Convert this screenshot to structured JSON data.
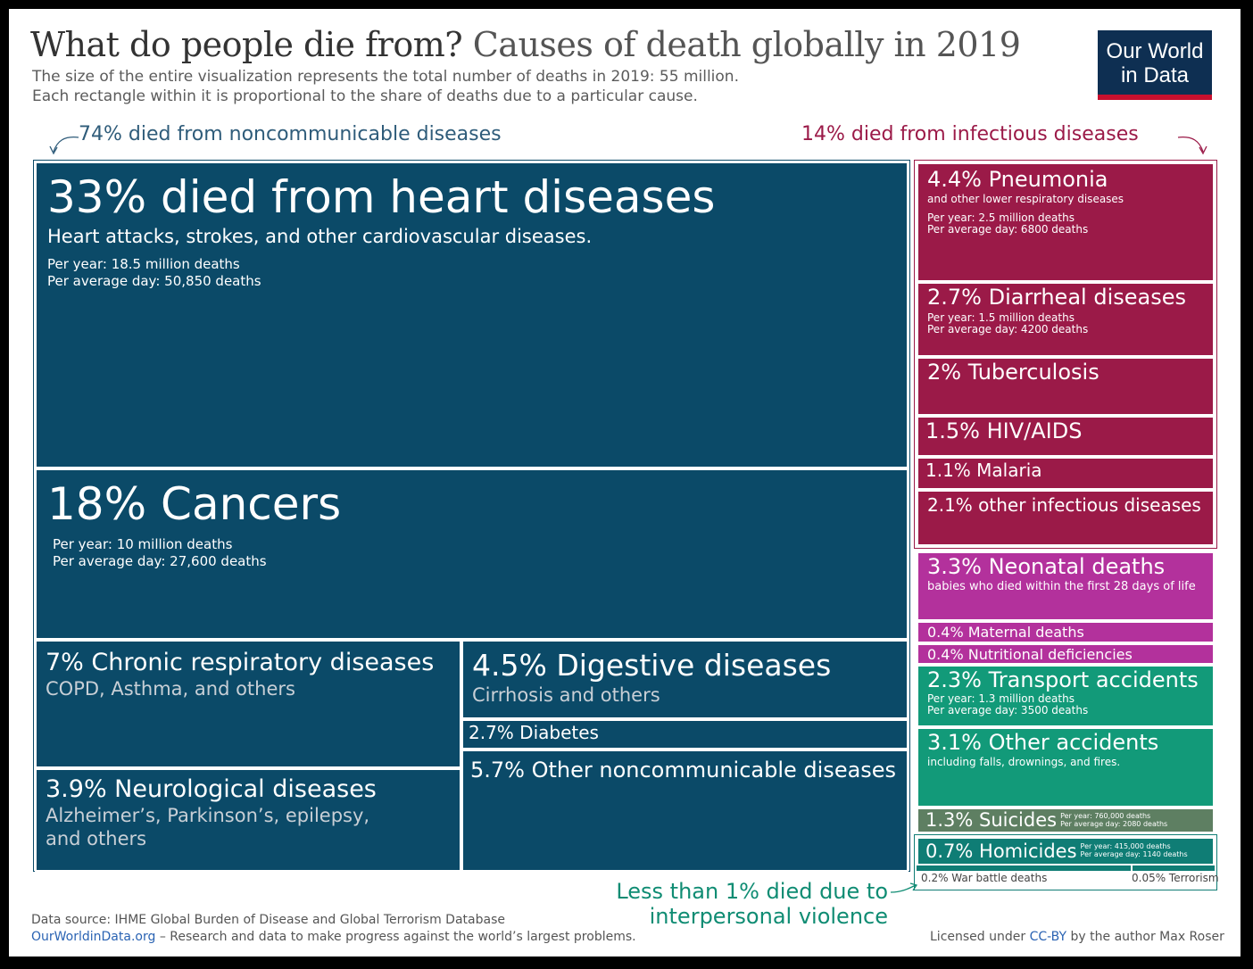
{
  "title": {
    "main": "What do people die from?",
    "sub": "Causes of death globally in 2019"
  },
  "subtitle": [
    "The size of the entire visualization represents the total number of deaths in 2019: 55 million.",
    "Each rectangle within it is proportional to the share of deaths due to a particular cause."
  ],
  "logo": {
    "line1": "Our World",
    "line2": "in Data"
  },
  "groups": {
    "ncd": "74% died from noncommunicable diseases",
    "infectious": "14% died from infectious diseases",
    "violence_line1": "Less than 1% died due to",
    "violence_line2": "interpersonal violence"
  },
  "colors": {
    "noncommunicable": "#0b4a68",
    "infectious": "#9b1a48",
    "maternal_neonatal": "#b3319c",
    "accidents": "#129a79",
    "suicides": "#5e7f62",
    "violence": "#0f7d75",
    "ncd_label": "#2f5c7a",
    "infectious_label": "#9b1a48",
    "violence_label": "#0f8c73"
  },
  "tiles": {
    "heart": {
      "title": "33% died from heart diseases",
      "desc": "Heart attacks, strokes, and other cardiovascular diseases.",
      "stat1": "Per year: 18.5 million deaths",
      "stat2": "Per average day: 50,850 deaths"
    },
    "cancer": {
      "title": "18% Cancers",
      "stat1": "Per year: 10 million deaths",
      "stat2": "Per average day: 27,600 deaths"
    },
    "respiratory": {
      "title": "7% Chronic respiratory diseases",
      "desc": "COPD, Asthma, and others"
    },
    "neuro": {
      "title": "3.9% Neurological diseases",
      "desc1": "Alzheimer’s, Parkinson’s, epilepsy,",
      "desc2": "and others"
    },
    "digestive": {
      "title": "4.5% Digestive diseases",
      "desc": "Cirrhosis and others"
    },
    "diabetes": {
      "title": "2.7% Diabetes"
    },
    "other_ncd": {
      "title": "5.7% Other noncommunicable diseases"
    },
    "pneumonia": {
      "title": "4.4% Pneumonia",
      "desc": "and other lower respiratory diseases",
      "stat1": "Per year: 2.5 million deaths",
      "stat2": "Per average day: 6800 deaths"
    },
    "diarrheal": {
      "title": "2.7% Diarrheal diseases",
      "stat1": "Per year: 1.5 million deaths",
      "stat2": "Per average day: 4200 deaths"
    },
    "tb": {
      "title": "2% Tuberculosis"
    },
    "hiv": {
      "title": "1.5% HIV/AIDS"
    },
    "malaria": {
      "title": "1.1% Malaria"
    },
    "other_inf": {
      "title": "2.1% other infectious diseases"
    },
    "neonatal": {
      "title": "3.3% Neonatal deaths",
      "desc": "babies who died within the first 28 days of life"
    },
    "maternal": {
      "title": "0.4% Maternal deaths"
    },
    "nutritional": {
      "title": "0.4% Nutritional deficiencies"
    },
    "transport": {
      "title": "2.3% Transport accidents",
      "stat1": "Per year: 1.3 million deaths",
      "stat2": "Per average day: 3500 deaths"
    },
    "other_acc": {
      "title": "3.1% Other accidents",
      "desc": "including falls, drownings, and fires."
    },
    "suicides": {
      "title": "1.3% Suicides",
      "stat1": "Per year: 760,000 deaths",
      "stat2": "Per average day: 2080 deaths"
    },
    "homicides": {
      "title": "0.7% Homicides",
      "stat1": "Per year: 415,000 deaths",
      "stat2": "Per average day: 1140 deaths"
    },
    "war": {
      "title": "0.2% War battle deaths"
    },
    "terrorism": {
      "title": "0.05% Terrorism"
    }
  },
  "footer": {
    "source": "Data source: IHME Global Burden of Disease and Global Terrorism Database",
    "site": "OurWorldinData.org",
    "site_rest": " – Research and data to make progress against the world’s largest problems.",
    "license_pre": "Licensed under ",
    "license_link": "CC-BY",
    "license_post": " by the author Max Roser"
  },
  "chart_data": {
    "type": "treemap",
    "title": "What do people die from? Causes of death globally in 2019",
    "total_deaths": "55 million",
    "groups": [
      {
        "name": "74% died from noncommunicable diseases",
        "items": [
          {
            "label": "Heart diseases",
            "share": 33
          },
          {
            "label": "Cancers",
            "share": 18
          },
          {
            "label": "Chronic respiratory diseases",
            "share": 7
          },
          {
            "label": "Neurological diseases",
            "share": 3.9
          },
          {
            "label": "Digestive diseases",
            "share": 4.5
          },
          {
            "label": "Diabetes",
            "share": 2.7
          },
          {
            "label": "Other noncommunicable diseases",
            "share": 5.7
          }
        ]
      },
      {
        "name": "14% died from infectious diseases",
        "items": [
          {
            "label": "Pneumonia",
            "share": 4.4
          },
          {
            "label": "Diarrheal diseases",
            "share": 2.7
          },
          {
            "label": "Tuberculosis",
            "share": 2
          },
          {
            "label": "HIV/AIDS",
            "share": 1.5
          },
          {
            "label": "Malaria",
            "share": 1.1
          },
          {
            "label": "other infectious diseases",
            "share": 2.1
          }
        ]
      },
      {
        "name": "",
        "items": [
          {
            "label": "Neonatal deaths",
            "share": 3.3
          },
          {
            "label": "Maternal deaths",
            "share": 0.4
          },
          {
            "label": "Nutritional deficiencies",
            "share": 0.4
          },
          {
            "label": "Transport accidents",
            "share": 2.3
          },
          {
            "label": "Other accidents",
            "share": 3.1
          },
          {
            "label": "Suicides",
            "share": 1.3
          }
        ]
      },
      {
        "name": "Less than 1% died due to interpersonal violence",
        "items": [
          {
            "label": "Homicides",
            "share": 0.7
          },
          {
            "label": "War battle deaths",
            "share": 0.2
          },
          {
            "label": "Terrorism",
            "share": 0.05
          }
        ]
      }
    ]
  }
}
